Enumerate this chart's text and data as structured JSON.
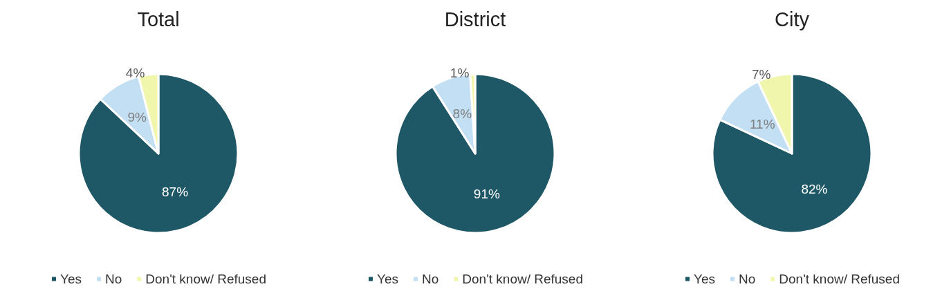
{
  "chart_data": [
    {
      "type": "pie",
      "title": "Total",
      "categories": [
        "Yes",
        "No",
        "Don't know/ Refused"
      ],
      "values": [
        87,
        9,
        4
      ],
      "value_labels": [
        "87%",
        "9%",
        "4%"
      ],
      "colors": [
        "#1e5866",
        "#c3dff3",
        "#f1f6ad"
      ],
      "legend": "bottom"
    },
    {
      "type": "pie",
      "title": "District",
      "categories": [
        "Yes",
        "No",
        "Don't know/ Refused"
      ],
      "values": [
        91,
        8,
        1
      ],
      "value_labels": [
        "91%",
        "8%",
        "1%"
      ],
      "colors": [
        "#1e5866",
        "#c3dff3",
        "#f1f6ad"
      ],
      "legend": "bottom"
    },
    {
      "type": "pie",
      "title": "City",
      "categories": [
        "Yes",
        "No",
        "Don't know/ Refused"
      ],
      "values": [
        82,
        11,
        7
      ],
      "value_labels": [
        "82%",
        "11%",
        "7%"
      ],
      "colors": [
        "#1e5866",
        "#c3dff3",
        "#f1f6ad"
      ],
      "legend": "bottom"
    }
  ]
}
